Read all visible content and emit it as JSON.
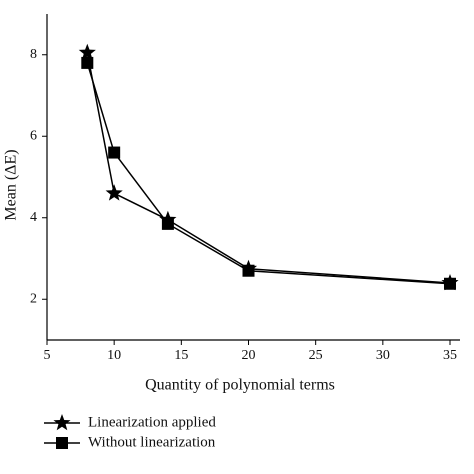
{
  "chart_data": {
    "type": "line",
    "xlabel": "Quantity of polynomial terms",
    "ylabel": "Mean (ΔE)",
    "xlim": [
      5,
      35
    ],
    "xticks": [
      5,
      10,
      15,
      20,
      25,
      30,
      35
    ],
    "ylim": [
      1,
      9
    ],
    "yticks": [
      2,
      4,
      6,
      8
    ],
    "legend": "bottom-left",
    "series": [
      {
        "name": "Linearization applied",
        "color": "#000000",
        "marker": "star",
        "x": [
          8,
          10,
          14,
          20,
          35
        ],
        "values": [
          8.05,
          4.6,
          3.95,
          2.75,
          2.4
        ]
      },
      {
        "name": "Without linearization",
        "color": "#000000",
        "marker": "square",
        "x": [
          8,
          10,
          14,
          20,
          35
        ],
        "values": [
          7.8,
          5.6,
          3.85,
          2.7,
          2.38
        ]
      }
    ]
  }
}
